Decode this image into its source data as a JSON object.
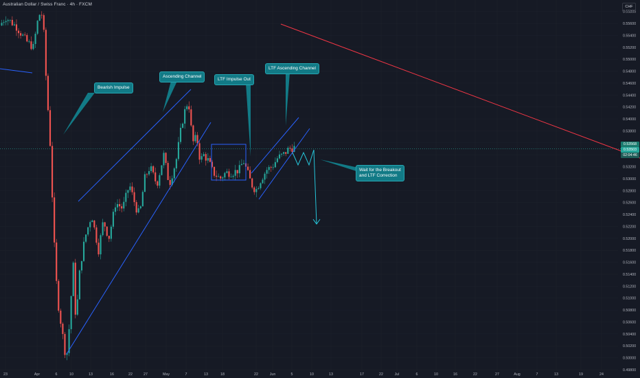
{
  "header": {
    "title": "Australian Dollar / Swiss Franc · 4h · FXCM",
    "currency": "CHF"
  },
  "price_tags": {
    "last": "0.53568",
    "current": "0.53503",
    "countdown": "02:04:46"
  },
  "annotations": {
    "bearish_impulse": "Bearish Impulse",
    "ascending_channel": "Ascending Channel",
    "ltf_impulse_out": "LTF Impulse Out",
    "ltf_ascending_channel": "LTF Ascending Channel",
    "wait_breakout": "Wait for the Breakout\nand LTF Correction"
  },
  "colors": {
    "background": "#161a25",
    "bull": "#26a69a",
    "bear": "#ef5350",
    "channel_line": "#2962ff",
    "trend_line": "#f23645",
    "annotation_bg": "#127a86",
    "projection": "#26c6da"
  },
  "chart_data": {
    "type": "candlestick",
    "title": "Australian Dollar / Swiss Franc · 4h · FXCM",
    "ylim": [
      0.498,
      0.559
    ],
    "y_ticks": [
      "0.55800",
      "0.55600",
      "0.55400",
      "0.55200",
      "0.55000",
      "0.54800",
      "0.54600",
      "0.54400",
      "0.54200",
      "0.54000",
      "0.53800",
      "0.53600",
      "0.53400",
      "0.53200",
      "0.53000",
      "0.52800",
      "0.52600",
      "0.52400",
      "0.52200",
      "0.52000",
      "0.51800",
      "0.51600",
      "0.51400",
      "0.51200",
      "0.51000",
      "0.50800",
      "0.50600",
      "0.50400",
      "0.50200",
      "0.50000",
      "0.49800"
    ],
    "x_ticks": [
      "23",
      "Apr",
      "6",
      "10",
      "13",
      "16",
      "22",
      "27",
      "May",
      "7",
      "13",
      "18",
      "22",
      "Jun",
      "5",
      "10",
      "13",
      "17",
      "22",
      "Jul",
      "6",
      "10",
      "16",
      "22",
      "27",
      "Aug",
      "7",
      "13",
      "19",
      "24",
      "Sep",
      "5"
    ],
    "anchors": [
      [
        0,
        0.5555
      ],
      [
        10,
        0.557
      ],
      [
        25,
        0.5555
      ],
      [
        40,
        0.553
      ],
      [
        50,
        0.552
      ],
      [
        58,
        0.5575
      ],
      [
        64,
        0.5575
      ],
      [
        68,
        0.548
      ],
      [
        75,
        0.535
      ],
      [
        80,
        0.52
      ],
      [
        85,
        0.51
      ],
      [
        90,
        0.506
      ],
      [
        95,
        0.502
      ],
      [
        98,
        0.4995
      ],
      [
        103,
        0.506
      ],
      [
        108,
        0.516
      ],
      [
        112,
        0.506
      ],
      [
        118,
        0.515
      ],
      [
        125,
        0.52
      ],
      [
        135,
        0.524
      ],
      [
        145,
        0.518
      ],
      [
        152,
        0.523
      ],
      [
        160,
        0.52
      ],
      [
        170,
        0.526
      ],
      [
        180,
        0.525
      ],
      [
        190,
        0.529
      ],
      [
        200,
        0.525
      ],
      [
        205,
        0.524
      ],
      [
        212,
        0.53
      ],
      [
        220,
        0.532
      ],
      [
        230,
        0.529
      ],
      [
        240,
        0.534
      ],
      [
        248,
        0.529
      ],
      [
        258,
        0.533
      ],
      [
        266,
        0.539
      ],
      [
        272,
        0.542
      ],
      [
        276,
        0.543
      ],
      [
        282,
        0.536
      ],
      [
        288,
        0.537
      ],
      [
        293,
        0.533
      ],
      [
        298,
        0.534
      ],
      [
        305,
        0.533
      ],
      [
        312,
        0.531
      ],
      [
        322,
        0.53
      ],
      [
        330,
        0.531
      ],
      [
        340,
        0.531
      ],
      [
        350,
        0.5315
      ],
      [
        356,
        0.533
      ],
      [
        362,
        0.531
      ],
      [
        368,
        0.529
      ],
      [
        374,
        0.528
      ],
      [
        382,
        0.53
      ],
      [
        390,
        0.5315
      ],
      [
        398,
        0.532
      ],
      [
        406,
        0.5335
      ],
      [
        414,
        0.534
      ],
      [
        422,
        0.535
      ],
      [
        428,
        0.5352
      ]
    ],
    "candle_count": 140,
    "drawings": {
      "bearish_impulse": "Bearish Impulse",
      "ascending_channel": "Ascending Channel",
      "ltf_impulse_out": "LTF Impulse Out",
      "ltf_ascending_channel": "LTF Ascending Channel",
      "projection_note": "Wait for the Breakout and LTF Correction"
    }
  }
}
